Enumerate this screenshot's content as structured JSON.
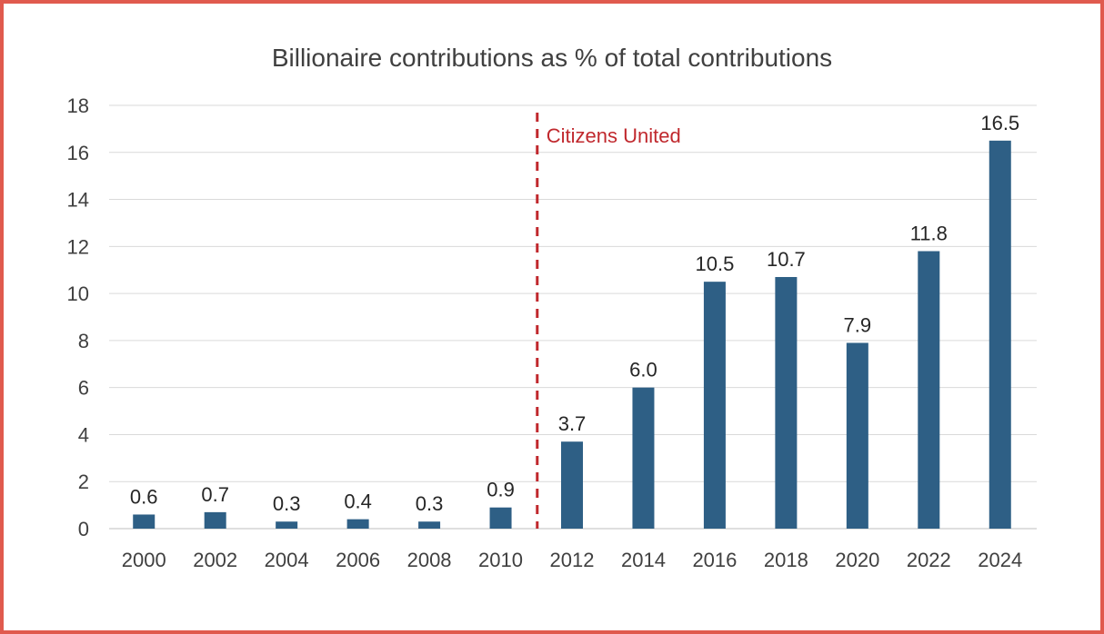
{
  "chart_data": {
    "type": "bar",
    "title": "Billionaire contributions as % of total contributions",
    "xlabel": "",
    "ylabel": "",
    "categories": [
      "2000",
      "2002",
      "2004",
      "2006",
      "2008",
      "2010",
      "2012",
      "2014",
      "2016",
      "2018",
      "2020",
      "2022",
      "2024"
    ],
    "values": [
      0.6,
      0.7,
      0.3,
      0.4,
      0.3,
      0.9,
      3.7,
      6.0,
      10.5,
      10.7,
      7.9,
      11.8,
      16.5
    ],
    "data_labels": [
      "0.6",
      "0.7",
      "0.3",
      "0.4",
      "0.3",
      "0.9",
      "3.7",
      "6.0",
      "10.5",
      "10.7",
      "7.9",
      "11.8",
      "16.5"
    ],
    "ylim": [
      0,
      18
    ],
    "yticks": [
      "0",
      "2",
      "4",
      "6",
      "8",
      "10",
      "12",
      "14",
      "16",
      "18"
    ],
    "grid": true,
    "legend": "none",
    "bar_color": "#2e5f85",
    "annotations": [
      {
        "text": "Citizens United",
        "type": "vertical-dashed-line",
        "between": [
          "2010",
          "2012"
        ],
        "color": "#c0282d"
      }
    ]
  },
  "frame_color": "#e05a4e"
}
